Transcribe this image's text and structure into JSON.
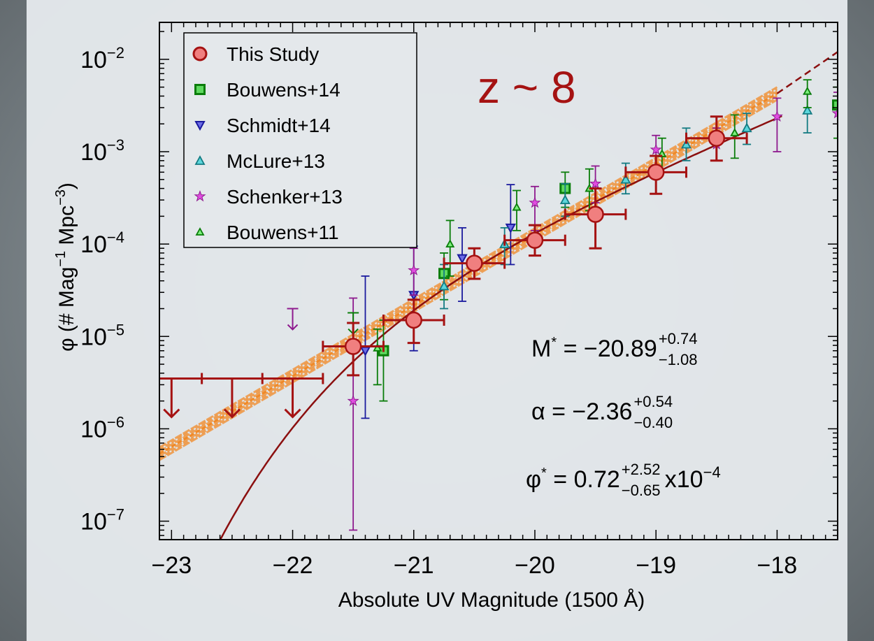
{
  "chart_data": {
    "type": "scatter",
    "title": "",
    "annotation_z": "z ~ 8",
    "xlabel": "Absolute UV Magnitude (1500 Å)",
    "ylabel_parts": {
      "pre": "φ (# Mag",
      "exp1": "−1",
      "mid": " Mpc",
      "exp2": "−3",
      "post": ")"
    },
    "xlim": [
      -23.1,
      -17.5
    ],
    "ylim_log10": [
      -7.2,
      -1.6
    ],
    "y_scale": "log",
    "x_ticks": [
      -23,
      -22,
      -21,
      -20,
      -19,
      -18
    ],
    "x_tick_labels": [
      "−23",
      "−22",
      "−21",
      "−20",
      "−19",
      "−18"
    ],
    "y_ticks_log10": [
      -7,
      -6,
      -5,
      -4,
      -3,
      -2
    ],
    "y_tick_labels": [
      "10",
      "10",
      "10",
      "10",
      "10",
      "10"
    ],
    "y_tick_exps": [
      "−7",
      "−6",
      "−5",
      "−4",
      "−3",
      "−2"
    ],
    "legend_position": "top-left",
    "series": [
      {
        "name": "This Study",
        "marker": "circle",
        "color": "#a51212",
        "fill": "#f07f7f",
        "points": [
          {
            "x": -21.5,
            "y": 7.8e-06,
            "ylo": 3.8e-06,
            "yhi": 1.4e-05,
            "xerr": 0.25
          },
          {
            "x": -21.0,
            "y": 1.5e-05,
            "ylo": 8.5e-06,
            "yhi": 2.5e-05,
            "xerr": 0.25
          },
          {
            "x": -20.5,
            "y": 6.2e-05,
            "ylo": 4.2e-05,
            "yhi": 9e-05,
            "xerr": 0.25
          },
          {
            "x": -20.0,
            "y": 0.00011,
            "ylo": 7.5e-05,
            "yhi": 0.00016,
            "xerr": 0.25
          },
          {
            "x": -19.5,
            "y": 0.00021,
            "ylo": 9e-05,
            "yhi": 0.0004,
            "xerr": 0.25
          },
          {
            "x": -19.0,
            "y": 0.0006,
            "ylo": 0.00035,
            "yhi": 0.0009,
            "xerr": 0.25
          },
          {
            "x": -18.5,
            "y": 0.0014,
            "ylo": 0.0008,
            "yhi": 0.0024,
            "xerr": 0.25
          }
        ],
        "upper_limits": [
          {
            "x": -23.0,
            "y": 3.5e-06,
            "xerr": 0.25
          },
          {
            "x": -22.5,
            "y": 3.5e-06,
            "xerr": 0.25
          },
          {
            "x": -22.0,
            "y": 3.5e-06,
            "xerr": 0.25
          }
        ]
      },
      {
        "name": "Bouwens+14",
        "marker": "square",
        "color": "#0a7d0a",
        "fill": "#5fd95f",
        "points": [
          {
            "x": -21.25,
            "y": 7e-06,
            "ylo": 2e-06,
            "yhi": 1.5e-05
          },
          {
            "x": -20.75,
            "y": 4.8e-05,
            "ylo": 2.5e-05,
            "yhi": 8e-05
          },
          {
            "x": -19.75,
            "y": 0.0004,
            "ylo": 0.00025,
            "yhi": 0.0006
          },
          {
            "x": -17.5,
            "y": 0.0032,
            "ylo": 0.0014,
            "yhi": 0.005
          }
        ]
      },
      {
        "name": "Schmidt+14",
        "marker": "tri-down",
        "color": "#1b1b9e",
        "fill": "#6d6de6",
        "points": [
          {
            "x": -21.4,
            "y": 7e-06,
            "ylo": 1.3e-06,
            "yhi": 4.5e-05
          },
          {
            "x": -21.0,
            "y": 2.8e-05,
            "ylo": 7e-06,
            "yhi": 9.5e-05
          },
          {
            "x": -20.6,
            "y": 7e-05,
            "ylo": 2.4e-05,
            "yhi": 0.00015
          },
          {
            "x": -20.2,
            "y": 0.00015,
            "ylo": 6e-05,
            "yhi": 0.00044
          }
        ]
      },
      {
        "name": "McLure+13",
        "marker": "tri-up",
        "color": "#137b82",
        "fill": "#5cd6dc",
        "points": [
          {
            "x": -20.75,
            "y": 3.5e-05,
            "ylo": 2e-05,
            "yhi": 6e-05
          },
          {
            "x": -20.25,
            "y": 0.0001,
            "ylo": 6e-05,
            "yhi": 0.00015
          },
          {
            "x": -19.75,
            "y": 0.0003,
            "ylo": 0.0002,
            "yhi": 0.00045
          },
          {
            "x": -19.25,
            "y": 0.0005,
            "ylo": 0.00035,
            "yhi": 0.00075
          },
          {
            "x": -18.75,
            "y": 0.0012,
            "ylo": 0.0008,
            "yhi": 0.0018
          },
          {
            "x": -18.25,
            "y": 0.0018,
            "ylo": 0.0012,
            "yhi": 0.0026
          },
          {
            "x": -17.75,
            "y": 0.0028,
            "ylo": 0.0016,
            "yhi": 0.0042
          }
        ]
      },
      {
        "name": "Schenker+13",
        "marker": "star",
        "color": "#8e1a8e",
        "fill": "#e04de0",
        "points": [
          {
            "x": -21.5,
            "y": 2e-06,
            "ylo": 8e-08,
            "yhi": 2.6e-05
          },
          {
            "x": -21.0,
            "y": 5.2e-05,
            "ylo": 2.8e-05,
            "yhi": 9e-05
          },
          {
            "x": -20.0,
            "y": 0.00028,
            "ylo": 0.00014,
            "yhi": 0.00042
          },
          {
            "x": -19.5,
            "y": 0.00045,
            "ylo": 0.00028,
            "yhi": 0.0007
          },
          {
            "x": -19.0,
            "y": 0.00105,
            "ylo": 0.0007,
            "yhi": 0.0015
          },
          {
            "x": -18.5,
            "y": 0.0012,
            "ylo": 0.0008,
            "yhi": 0.0018
          },
          {
            "x": -18.0,
            "y": 0.0024,
            "ylo": 0.001,
            "yhi": 0.0038
          },
          {
            "x": -17.5,
            "y": 0.0026,
            "ylo": 0.0006,
            "yhi": 0.0044
          }
        ],
        "upper_limits": [
          {
            "x": -22.0,
            "y": 2e-05,
            "xerr": 0
          }
        ]
      },
      {
        "name": "Bouwens+11",
        "marker": "tri-up-small",
        "color": "#0a7d0a",
        "fill": "#7df07d",
        "points": [
          {
            "x": -21.3,
            "y": 7.5e-06,
            "ylo": 3e-06,
            "yhi": 1.2e-05
          },
          {
            "x": -20.7,
            "y": 0.0001,
            "ylo": 4.5e-05,
            "yhi": 0.00018
          },
          {
            "x": -20.15,
            "y": 0.00025,
            "ylo": 0.00014,
            "yhi": 0.00038
          },
          {
            "x": -19.55,
            "y": 0.0004,
            "ylo": 0.00023,
            "yhi": 0.00065
          },
          {
            "x": -18.95,
            "y": 0.00095,
            "ylo": 0.0006,
            "yhi": 0.0014
          },
          {
            "x": -18.35,
            "y": 0.0016,
            "ylo": 0.00085,
            "yhi": 0.0025
          },
          {
            "x": -17.75,
            "y": 0.0045,
            "ylo": 0.003,
            "yhi": 0.006
          }
        ],
        "upper_limits": [
          {
            "x": -21.5,
            "y": 1.8e-05,
            "xerr": 0
          }
        ]
      }
    ],
    "schechter": {
      "Mstar": -20.89,
      "alpha": -2.36,
      "phistar": 7.2e-05,
      "color": "#8b0f0f"
    },
    "power_law_band": {
      "x": [
        -23.1,
        -18.0
      ],
      "log10y": [
        -6.27,
        -2.37
      ],
      "color": "#f08a28"
    },
    "params": {
      "mstar": {
        "base": "M",
        "sup": "*",
        "value": " = −20.89",
        "up": "+0.74",
        "down": "−1.08"
      },
      "alpha": {
        "base": "α",
        "value": " = −2.36",
        "up": "+0.54",
        "down": "−0.40"
      },
      "phistar": {
        "base": "φ",
        "sup": "*",
        "value": " = 0.72 ",
        "up": "+2.52",
        "down": "−0.65",
        "tail": "x10",
        "tail_exp": "−4"
      }
    }
  }
}
